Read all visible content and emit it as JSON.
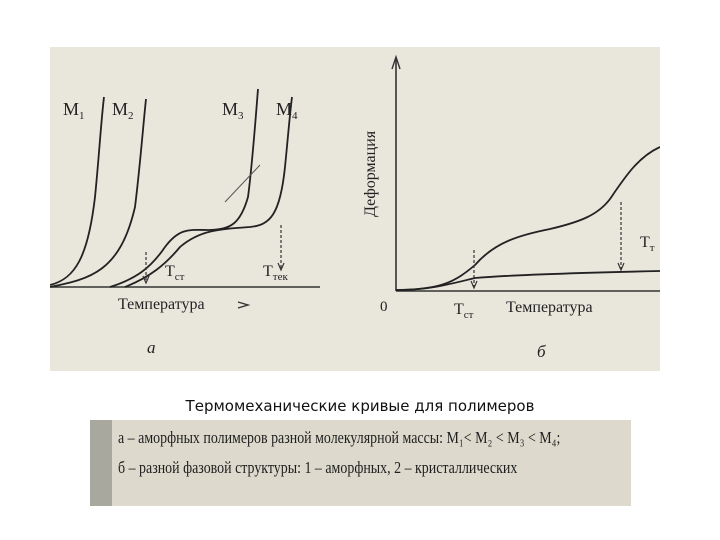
{
  "left_panel": {
    "curve_labels": [
      "M",
      "M",
      "M",
      "M"
    ],
    "curve_subs": [
      "1",
      "2",
      "3",
      "4"
    ],
    "tst": "T",
    "tst_sub": "ст",
    "ttek": "T",
    "ttek_sub": "тек",
    "xlabel": "Температура",
    "panel_letter": "а"
  },
  "right_panel": {
    "ylabel": "Деформация",
    "origin": "0",
    "tst": "T",
    "tst_sub": "ст",
    "xlabel": "Температура",
    "tt": "T",
    "tt_sub": "т",
    "panel_letter": "б"
  },
  "caption": "Термомеханические кривые для полимеров",
  "legend": {
    "line1": "а – аморфных полимеров разной молекулярной массы: M₁< M₂ < M₃ < M₄;",
    "line2": "б – разной фазовой структуры: 1 – аморфных, 2 – кристаллических"
  },
  "colors": {
    "background": "#e9e6dc",
    "ink": "#222222",
    "legend_bg": "#dddacd",
    "legend_strip": "#a9a89e"
  }
}
